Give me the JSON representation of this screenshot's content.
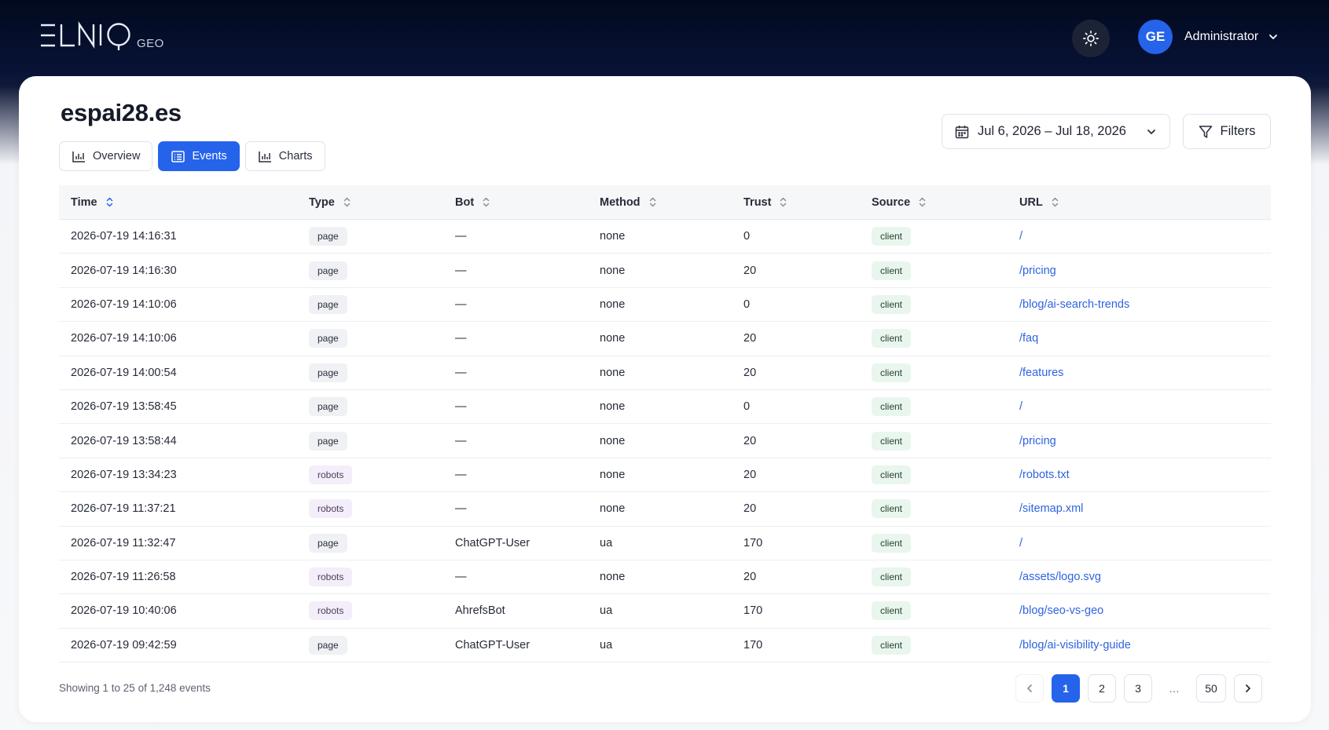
{
  "header": {
    "logo_text": "ELNIQ",
    "logo_sub": "GEO",
    "user_initials": "GE",
    "user_name": "Administrator"
  },
  "page": {
    "site": "espai28.es",
    "tabs": [
      {
        "label": "Overview",
        "active": false
      },
      {
        "label": "Events",
        "active": true
      },
      {
        "label": "Charts",
        "active": false
      }
    ],
    "date_range": "Jul 6, 2026 – Jul 18, 2026",
    "filters_label": "Filters"
  },
  "table": {
    "columns": [
      "Time",
      "Type",
      "Bot",
      "Method",
      "Trust",
      "Source",
      "URL"
    ],
    "rows": [
      {
        "time": "2026-07-19 14:16:31",
        "type": "page",
        "bot": "—",
        "method": "none",
        "trust": "0",
        "source": "client",
        "url": "/"
      },
      {
        "time": "2026-07-19 14:16:30",
        "type": "page",
        "bot": "—",
        "method": "none",
        "trust": "20",
        "source": "client",
        "url": "/pricing"
      },
      {
        "time": "2026-07-19 14:10:06",
        "type": "page",
        "bot": "—",
        "method": "none",
        "trust": "0",
        "source": "client",
        "url": "/blog/ai-search-trends"
      },
      {
        "time": "2026-07-19 14:10:06",
        "type": "page",
        "bot": "—",
        "method": "none",
        "trust": "20",
        "source": "client",
        "url": "/faq"
      },
      {
        "time": "2026-07-19 14:00:54",
        "type": "page",
        "bot": "—",
        "method": "none",
        "trust": "20",
        "source": "client",
        "url": "/features"
      },
      {
        "time": "2026-07-19 13:58:45",
        "type": "page",
        "bot": "—",
        "method": "none",
        "trust": "0",
        "source": "client",
        "url": "/"
      },
      {
        "time": "2026-07-19 13:58:44",
        "type": "page",
        "bot": "—",
        "method": "none",
        "trust": "20",
        "source": "client",
        "url": "/pricing"
      },
      {
        "time": "2026-07-19 13:34:23",
        "type": "robots",
        "bot": "—",
        "method": "none",
        "trust": "20",
        "source": "client",
        "url": "/robots.txt"
      },
      {
        "time": "2026-07-19 11:37:21",
        "type": "robots",
        "bot": "—",
        "method": "none",
        "trust": "20",
        "source": "client",
        "url": "/sitemap.xml"
      },
      {
        "time": "2026-07-19 11:32:47",
        "type": "page",
        "bot": "ChatGPT-User",
        "method": "ua",
        "trust": "170",
        "source": "client",
        "url": "/"
      },
      {
        "time": "2026-07-19 11:26:58",
        "type": "robots",
        "bot": "—",
        "method": "none",
        "trust": "20",
        "source": "client",
        "url": "/assets/logo.svg"
      },
      {
        "time": "2026-07-19 10:40:06",
        "type": "robots",
        "bot": "AhrefsBot",
        "method": "ua",
        "trust": "170",
        "source": "client",
        "url": "/blog/seo-vs-geo"
      },
      {
        "time": "2026-07-19 09:42:59",
        "type": "page",
        "bot": "ChatGPT-User",
        "method": "ua",
        "trust": "170",
        "source": "client",
        "url": "/blog/ai-visibility-guide"
      }
    ]
  },
  "footer": {
    "summary": "Showing 1 to 25 of 1,248 events",
    "pages": [
      "1",
      "2",
      "3",
      "…",
      "50"
    ],
    "current_page": "1"
  }
}
